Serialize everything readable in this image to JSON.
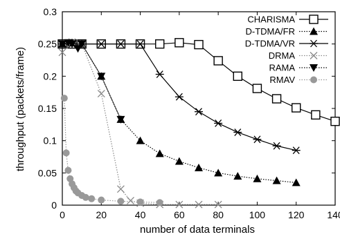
{
  "chart_data": {
    "type": "line",
    "xlabel": "number of data terminals",
    "ylabel": "throughput (packets/frame)",
    "xlim": [
      0,
      140
    ],
    "ylim": [
      0,
      0.3
    ],
    "xticks": [
      "0",
      "20",
      "40",
      "60",
      "80",
      "100",
      "120",
      "140"
    ],
    "yticks": [
      "0",
      "0.05",
      "0.1",
      "0.15",
      "0.2",
      "0.25",
      "0.3"
    ],
    "legend_position": "top-right",
    "grid": false,
    "series": [
      {
        "name": "CHARISMA",
        "marker": "square-open",
        "line": "solid",
        "color": "#000000",
        "x": [
          0,
          5,
          10,
          20,
          30,
          40,
          50,
          60,
          70,
          80,
          90,
          100,
          110,
          120,
          130,
          140
        ],
        "y": [
          0.25,
          0.25,
          0.25,
          0.25,
          0.25,
          0.25,
          0.25,
          0.252,
          0.249,
          0.224,
          0.2,
          0.181,
          0.165,
          0.151,
          0.14,
          0.13
        ]
      },
      {
        "name": "D-TDMA/FR",
        "marker": "triangle-filled",
        "line": "dotted",
        "color": "#000000",
        "x": [
          0,
          5,
          10,
          20,
          30,
          40,
          50,
          60,
          70,
          80,
          90,
          100,
          110,
          120
        ],
        "y": [
          0.25,
          0.252,
          0.25,
          0.2,
          0.133,
          0.1,
          0.08,
          0.068,
          0.058,
          0.05,
          0.045,
          0.041,
          0.038,
          0.035
        ]
      },
      {
        "name": "D-TDMA/VR",
        "marker": "asterisk",
        "line": "solid",
        "color": "#000000",
        "x": [
          0,
          5,
          10,
          20,
          30,
          40,
          50,
          60,
          70,
          80,
          90,
          100,
          110,
          120
        ],
        "y": [
          0.25,
          0.25,
          0.25,
          0.25,
          0.25,
          0.25,
          0.203,
          0.168,
          0.145,
          0.127,
          0.113,
          0.102,
          0.092,
          0.085
        ]
      },
      {
        "name": "DRMA",
        "marker": "cross",
        "line": "dotted",
        "color": "#888888",
        "x": [
          0,
          5,
          10,
          20,
          30,
          35,
          40,
          50,
          60,
          70,
          80
        ],
        "y": [
          0.237,
          0.253,
          0.25,
          0.173,
          0.025,
          0.007,
          0.003,
          0.001,
          0.001,
          0.001,
          0.001
        ]
      },
      {
        "name": "RAMA",
        "marker": "inverted-triangle-filled",
        "line": "dotted",
        "color": "#000000",
        "x": [
          0,
          3,
          5,
          8,
          10,
          20,
          30
        ],
        "y": [
          0.25,
          0.252,
          0.25,
          0.243,
          0.25,
          0.2,
          0.133
        ]
      },
      {
        "name": "RMAV",
        "marker": "circle-filled",
        "line": "dotted",
        "color": "#999999",
        "x": [
          1,
          2,
          3,
          4,
          5,
          6,
          7,
          8,
          10,
          12,
          15,
          20,
          30,
          40,
          50
        ],
        "y": [
          0.166,
          0.081,
          0.054,
          0.041,
          0.033,
          0.027,
          0.022,
          0.019,
          0.015,
          0.012,
          0.01,
          0.008,
          0.006,
          0.005,
          0.004
        ]
      }
    ]
  }
}
